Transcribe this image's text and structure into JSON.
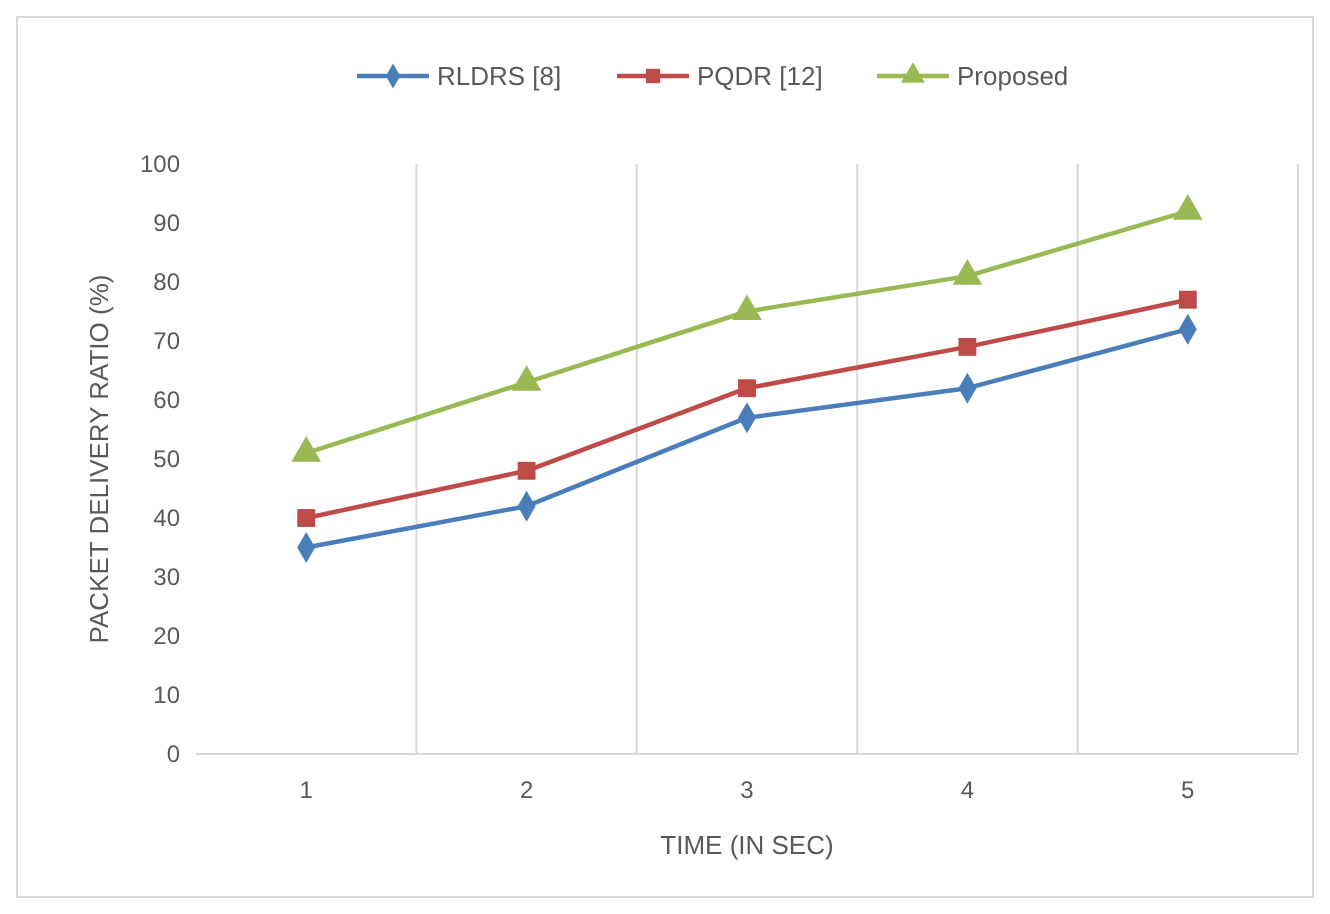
{
  "chart_data": {
    "type": "line",
    "xlabel": "TIME (IN SEC)",
    "ylabel": "PACKET DELIVERY RATIO (%)",
    "categories": [
      "1",
      "2",
      "3",
      "4",
      "5"
    ],
    "ylim": [
      0,
      100
    ],
    "yticks": [
      0,
      10,
      20,
      30,
      40,
      50,
      60,
      70,
      80,
      90,
      100
    ],
    "grid": "x",
    "legend": "top",
    "line_style": "solid",
    "series": [
      {
        "name": "RLDRS [8]",
        "color": "#4a7ebb",
        "marker": "diamond",
        "values": [
          35,
          42,
          57,
          62,
          72
        ]
      },
      {
        "name": "PQDR [12]",
        "color": "#be4b48",
        "marker": "square",
        "values": [
          40,
          48,
          62,
          69,
          77
        ]
      },
      {
        "name": "Proposed",
        "color": "#98b954",
        "marker": "triangle",
        "values": [
          51,
          63,
          75,
          81,
          92
        ]
      }
    ]
  }
}
